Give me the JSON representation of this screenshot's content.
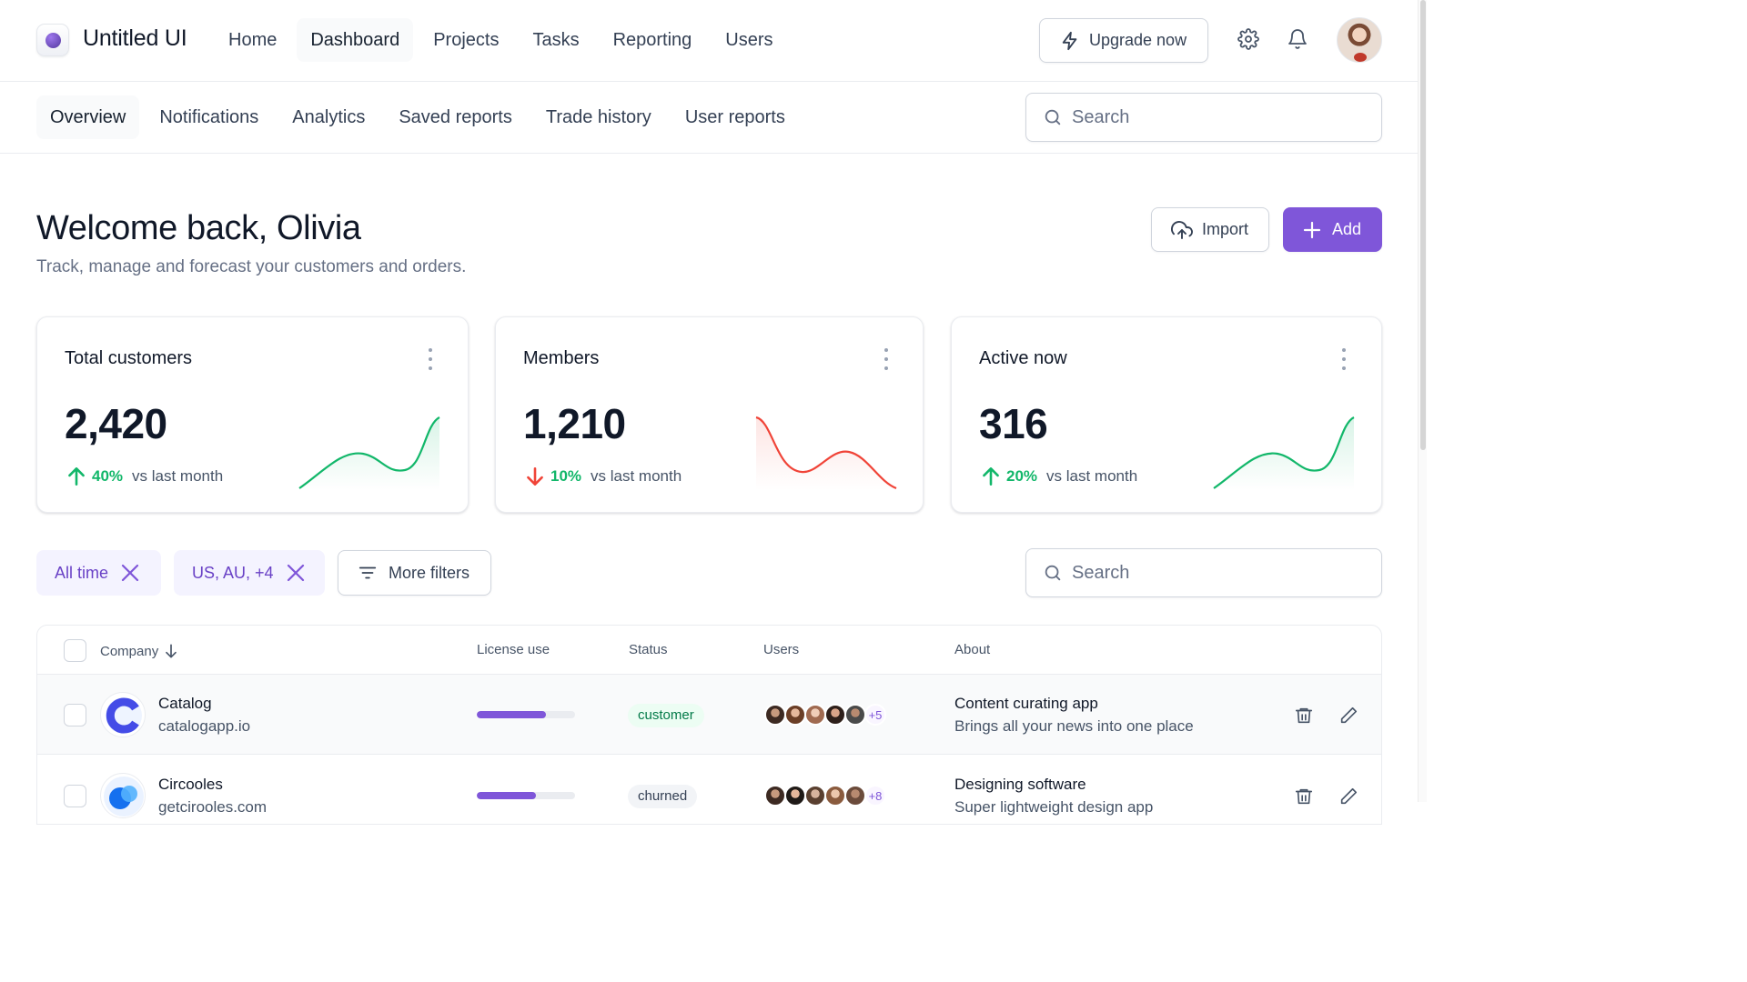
{
  "app": {
    "name": "Untitled UI"
  },
  "topnav": {
    "items": [
      "Home",
      "Dashboard",
      "Projects",
      "Tasks",
      "Reporting",
      "Users"
    ],
    "active": "Dashboard",
    "upgrade_label": "Upgrade now",
    "icons": [
      "lightning-icon",
      "gear-icon",
      "bell-icon"
    ]
  },
  "subnav": {
    "tabs": [
      "Overview",
      "Notifications",
      "Analytics",
      "Saved reports",
      "Trade history",
      "User reports"
    ],
    "active": "Overview",
    "search_placeholder": "Search"
  },
  "header": {
    "title": "Welcome back, Olivia",
    "subtitle": "Track, manage and forecast your customers and orders.",
    "import_label": "Import",
    "add_label": "Add"
  },
  "stats": [
    {
      "title": "Total customers",
      "value": "2,420",
      "change": "40%",
      "direction": "up",
      "compare": "vs last month",
      "color": "#12b76a"
    },
    {
      "title": "Members",
      "value": "1,210",
      "change": "10%",
      "direction": "down",
      "compare": "vs last month",
      "color": "#f04438"
    },
    {
      "title": "Active now",
      "value": "316",
      "change": "20%",
      "direction": "up",
      "compare": "vs last month",
      "color": "#12b76a"
    }
  ],
  "filters": {
    "chips": [
      "All time",
      "US, AU, +4"
    ],
    "more_label": "More filters",
    "search_placeholder": "Search"
  },
  "table": {
    "columns": [
      "Company",
      "License use",
      "Status",
      "Users",
      "About"
    ],
    "rows": [
      {
        "company": "Catalog",
        "domain": "catalogapp.io",
        "license_use": 0.7,
        "status": "customer",
        "users_more": "+5",
        "about_title": "Content curating app",
        "about_sub": "Brings all your news into one place"
      },
      {
        "company": "Circooles",
        "domain": "getcirooles.com",
        "license_use": 0.6,
        "status": "churned",
        "users_more": "+8",
        "about_title": "Designing software",
        "about_sub": "Super lightweight design app"
      }
    ]
  },
  "colors": {
    "accent": "#7f56d9",
    "up": "#12b76a",
    "down": "#f04438"
  }
}
